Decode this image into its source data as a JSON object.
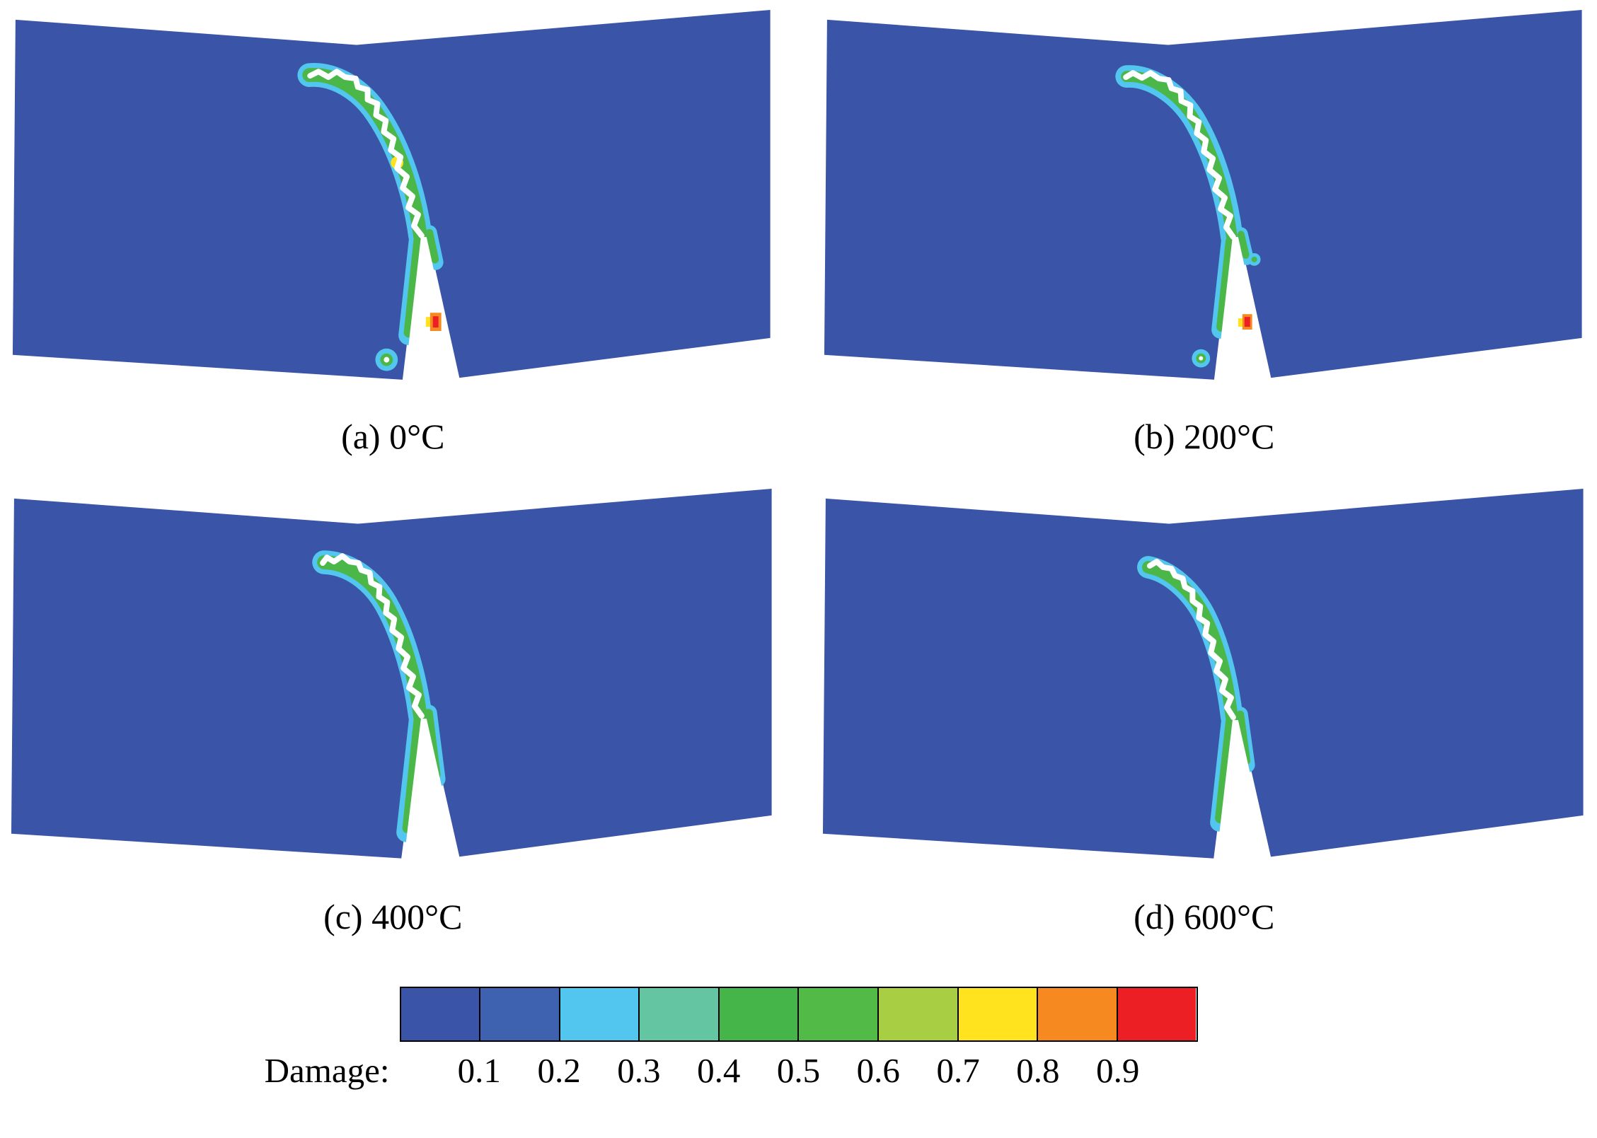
{
  "figure": {
    "background": "#ffffff",
    "panels": [
      {
        "id": "a",
        "caption": "(a) 0°C"
      },
      {
        "id": "b",
        "caption": "(b) 200°C"
      },
      {
        "id": "c",
        "caption": "(c) 400°C"
      },
      {
        "id": "d",
        "caption": "(d) 600°C"
      }
    ],
    "legend": {
      "label": "Damage:",
      "ticks": [
        "0.1",
        "0.2",
        "0.3",
        "0.4",
        "0.5",
        "0.6",
        "0.7",
        "0.8",
        "0.9"
      ],
      "band_colors": [
        "#3a54a7",
        "#3e61b0",
        "#52c6ee",
        "#63c5a2",
        "#46b549",
        "#52ba47",
        "#a8cf43",
        "#ffe31f",
        "#f68a20",
        "#ec2024"
      ]
    },
    "colors": {
      "specimen": "#3a54a7",
      "contour_outer": "#52c6ee",
      "contour_inner": "#4cb749",
      "crack": "#ffffff",
      "spot_yellow": "#ffe31f",
      "spot_orange": "#f68a20",
      "spot_red": "#ec2024"
    }
  },
  "chart_data": {
    "type": "heatmap",
    "description": "Four-panel finite-element damage contour plots of a deformed notched specimen; a curved crack (white, outlined by cyan-to-green damage bands) grows upward from a bottom-center notch and hooks to the left. Panels differ by temperature.",
    "panels": [
      {
        "label": "(a) 0°C",
        "temperature_C": 0
      },
      {
        "label": "(b) 200°C",
        "temperature_C": 200
      },
      {
        "label": "(c) 400°C",
        "temperature_C": 400
      },
      {
        "label": "(d) 600°C",
        "temperature_C": 600
      }
    ],
    "colorbar": {
      "label": "Damage:",
      "tick_values": [
        0.1,
        0.2,
        0.3,
        0.4,
        0.5,
        0.6,
        0.7,
        0.8,
        0.9
      ],
      "value_range": [
        0,
        1
      ],
      "band_colors": [
        "#3a54a7",
        "#3e61b0",
        "#52c6ee",
        "#63c5a2",
        "#46b549",
        "#52ba47",
        "#a8cf43",
        "#ffe31f",
        "#f68a20",
        "#ec2024"
      ],
      "orientation": "horizontal",
      "position": "bottom"
    }
  }
}
